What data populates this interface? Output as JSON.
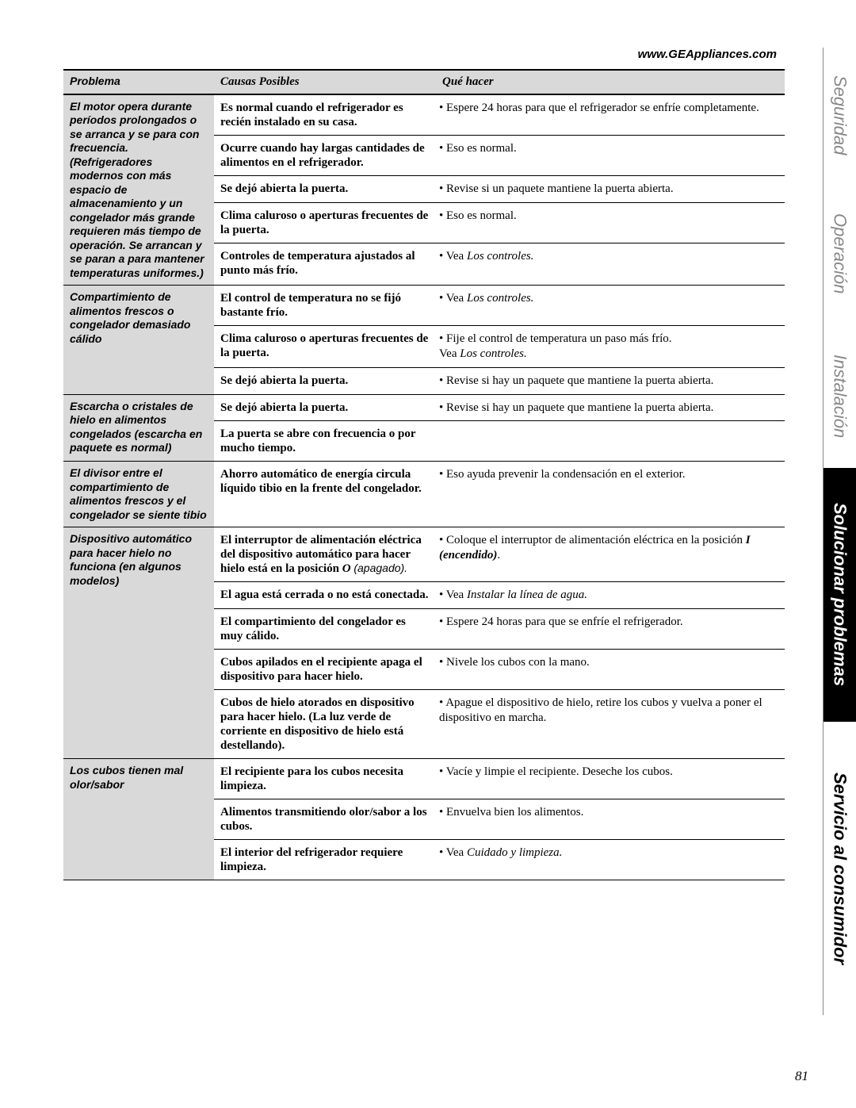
{
  "url": "www.GEAppliances.com",
  "page_number": "81",
  "headers": {
    "problema": "Problema",
    "causas": "Causas Posibles",
    "hacer": "Qué hacer"
  },
  "tabs": {
    "seguridad": "Seguridad",
    "operacion": "Operación",
    "instalacion": "Instalación",
    "solucionar": "Solucionar problemas",
    "servicio": "Servicio al consumidor"
  },
  "sections": [
    {
      "problema": "El motor opera durante períodos prolongados o se arranca y se para con frecuencia. (Refrigeradores modernos con más espacio de almacenamiento y un congelador más grande requieren más tiempo de operación. Se arrancan y se paran a para mantener temperaturas uniformes.)",
      "rows": [
        {
          "causa": "Es normal cuando el refrigerador es recién instalado en su casa.",
          "hacer": "Espere 24 horas para que el refrigerador se enfríe completamente."
        },
        {
          "causa": "Ocurre cuando hay largas cantidades de alimentos en el refrigerador.",
          "hacer": "Eso es normal."
        },
        {
          "causa": "Se dejó abierta la puerta.",
          "hacer": "Revise si un paquete mantiene la puerta abierta."
        },
        {
          "causa": "Clima caluroso o aperturas frecuentes de la puerta.",
          "hacer": "Eso es normal."
        },
        {
          "causa": "Controles de temperatura ajustados al punto más frío.",
          "hacer_html": "Vea <em>Los controles.</em>"
        }
      ]
    },
    {
      "problema": "Compartimiento de alimentos frescos o congelador demasiado cálido",
      "rows": [
        {
          "causa": "El control de temperatura no se fijó bastante frío.",
          "hacer_html": "Vea <em>Los controles.</em>"
        },
        {
          "causa": "Clima caluroso o aperturas frecuentes de la puerta.",
          "hacer_html": "Fije el control de temperatura un paso más frío.<br>Vea <em>Los controles.</em>"
        },
        {
          "causa": "Se dejó abierta la puerta.",
          "hacer": "Revise si hay un paquete que mantiene la puerta abierta."
        }
      ]
    },
    {
      "problema": "Escarcha o cristales de hielo en alimentos congelados (escarcha en paquete es normal)",
      "rows": [
        {
          "causa": "Se dejó abierta la puerta.",
          "hacer": "Revise si hay un paquete que mantiene la puerta abierta."
        },
        {
          "causa": "La puerta se abre con frecuencia o por mucho tiempo.",
          "hacer": ""
        }
      ]
    },
    {
      "problema": "El divisor entre el compartimiento de alimentos frescos y el congelador se siente tibio",
      "rows": [
        {
          "causa": "Ahorro automático de energía circula líquido tibio en la frente del congelador.",
          "hacer": "Eso ayuda prevenir la condensación en el exterior."
        }
      ]
    },
    {
      "problema": "Dispositivo automático para hacer hielo no funciona (en algunos modelos)",
      "rows": [
        {
          "causa_html": "El interruptor de alimentación eléctrica del dispositivo automático para hacer hielo está en la posición <em><b>O</b></em> <span class='light'>(apagado).</span>",
          "hacer_html": "Coloque el interruptor de alimentación eléctrica en la posición <strong>I (encendido)</strong>."
        },
        {
          "causa": "El agua está cerrada o no está conectada.",
          "hacer_html": "Vea <em>Instalar la línea de agua.</em>"
        },
        {
          "causa": "El compartimiento del congelador es muy cálido.",
          "hacer": "Espere 24 horas para que se enfríe el refrigerador."
        },
        {
          "causa": "Cubos apilados en el recipiente apaga el dispositivo para hacer hielo.",
          "hacer": "Nivele los cubos con la mano."
        },
        {
          "causa": "Cubos de hielo atorados en dispositivo para hacer hielo. (La luz verde de corriente en dispositivo de hielo está destellando).",
          "hacer": "Apague el dispositivo de hielo, retire los cubos y vuelva a poner el dispositivo en marcha."
        }
      ]
    },
    {
      "problema": "Los cubos tienen mal olor/sabor",
      "rows": [
        {
          "causa": "El recipiente para los cubos necesita limpieza.",
          "hacer": "Vacíe y limpie el recipiente. Deseche los cubos."
        },
        {
          "causa": "Alimentos transmitiendo olor/sabor a los cubos.",
          "hacer": "Envuelva bien los alimentos."
        },
        {
          "causa": "El interior del refrigerador requiere limpieza.",
          "hacer_html": "Vea <em>Cuidado y limpieza.</em>"
        }
      ]
    }
  ]
}
